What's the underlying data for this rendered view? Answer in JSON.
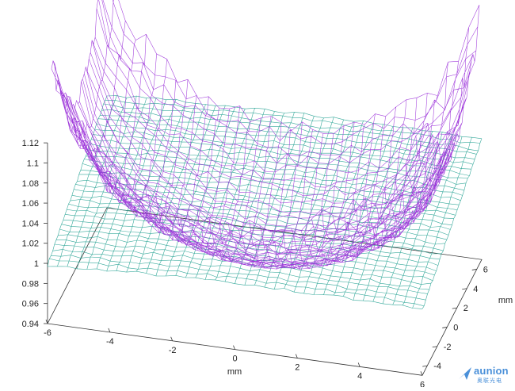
{
  "chart_data": {
    "type": "surface-3d-wireframe",
    "title": "",
    "xlabel": "mm",
    "ylabel": "mm",
    "zlabel": "",
    "xlim": [
      -6,
      6
    ],
    "ylim": [
      -5,
      7
    ],
    "zlim": [
      0.94,
      1.12
    ],
    "x_ticks": [
      "-6",
      "-4",
      "-2",
      "0",
      "2",
      "4",
      "6"
    ],
    "y_ticks": [
      "-4",
      "-2",
      "0",
      "2",
      "4",
      "6"
    ],
    "z_ticks": [
      "0.94",
      "0.96",
      "0.98",
      "1",
      "1.02",
      "1.04",
      "1.06",
      "1.08",
      "1.1",
      "1.12"
    ],
    "grid": false,
    "legend": "none",
    "series": [
      {
        "color": "#9b30d9",
        "shape": "paraboloid",
        "x_range": [
          -6,
          6
        ],
        "y_range": [
          -6,
          6
        ],
        "min_z": 0.97,
        "max_z": 1.12
      },
      {
        "color": "#20a090",
        "shape": "near-flat tilted plane",
        "x_range": [
          -6,
          6
        ],
        "y_range": [
          -5,
          7
        ],
        "min_z": 0.995,
        "max_z": 1.07
      }
    ]
  },
  "watermark": {
    "brand": "aunion",
    "subtitle": "奥联光电"
  }
}
